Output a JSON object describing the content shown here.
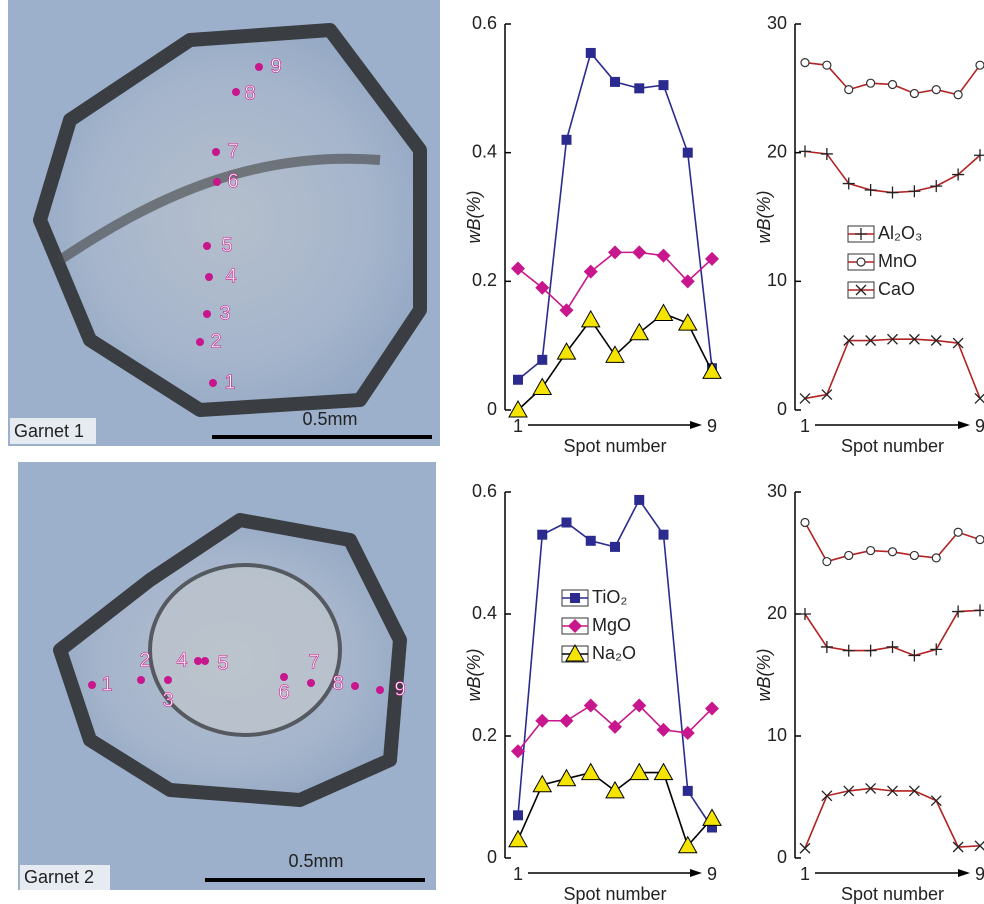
{
  "photos": [
    {
      "label": "Garnet 1",
      "scale": "0.5mm",
      "spots": [
        "1",
        "2",
        "3",
        "4",
        "5",
        "6",
        "7",
        "8",
        "9"
      ]
    },
    {
      "label": "Garnet 2",
      "scale": "0.5mm",
      "spots": [
        "1",
        "2",
        "3",
        "4",
        "5",
        "6",
        "7",
        "8",
        "9"
      ]
    }
  ],
  "chart_data": [
    {
      "type": "line",
      "ylabel": "wB(%)",
      "xlabel": "Spot number",
      "x": [
        1,
        2,
        3,
        4,
        5,
        6,
        7,
        8,
        9
      ],
      "xlim": [
        1,
        9
      ],
      "xticks": [
        1,
        9
      ],
      "ylim": [
        0,
        0.6
      ],
      "yticks": [
        0,
        0.2,
        0.4,
        0.6
      ],
      "legend": false,
      "series": [
        {
          "color": "#2b2b8f",
          "marker": "square",
          "values": [
            0.047,
            0.078,
            0.42,
            0.555,
            0.51,
            0.5,
            0.505,
            0.4,
            0.065
          ]
        },
        {
          "color": "#c8168c",
          "line_color": "#c8168c",
          "marker": "diamond",
          "values": [
            0.22,
            0.19,
            0.155,
            0.215,
            0.245,
            0.245,
            0.24,
            0.2,
            0.235
          ]
        },
        {
          "color": "#f5e400",
          "line_color": "#000000",
          "marker": "triangle",
          "values": [
            0,
            0.035,
            0.09,
            0.14,
            0.085,
            0.12,
            0.15,
            0.135,
            0.06
          ]
        }
      ]
    },
    {
      "type": "line",
      "ylabel": "wB(%)",
      "xlabel": "Spot number",
      "x": [
        1,
        2,
        3,
        4,
        5,
        6,
        7,
        8,
        9
      ],
      "xlim": [
        1,
        9
      ],
      "xticks": [
        1,
        9
      ],
      "ylim": [
        0,
        30
      ],
      "yticks": [
        0,
        10,
        20,
        30
      ],
      "legend": true,
      "series": [
        {
          "name": "Al₂O₃",
          "color": "#b22222",
          "marker": "plus",
          "values": [
            20.1,
            19.9,
            17.6,
            17.1,
            16.9,
            17.0,
            17.4,
            18.3,
            19.8
          ]
        },
        {
          "name": "MnO",
          "color": "#b22222",
          "marker": "circle",
          "values": [
            27.0,
            26.8,
            24.9,
            25.4,
            25.3,
            24.6,
            24.9,
            24.5,
            26.8
          ]
        },
        {
          "name": "CaO",
          "color": "#b22222",
          "marker": "cross",
          "values": [
            0.9,
            1.2,
            5.4,
            5.4,
            5.5,
            5.5,
            5.4,
            5.2,
            0.9
          ]
        }
      ]
    },
    {
      "type": "line",
      "ylabel": "wB(%)",
      "xlabel": "Spot number",
      "x": [
        1,
        2,
        3,
        4,
        5,
        6,
        7,
        8,
        9
      ],
      "xlim": [
        1,
        9
      ],
      "xticks": [
        1,
        9
      ],
      "ylim": [
        0,
        0.6
      ],
      "yticks": [
        0,
        0.2,
        0.4,
        0.6
      ],
      "legend": true,
      "series": [
        {
          "name": "TiO₂",
          "color": "#2b2b8f",
          "marker": "square",
          "values": [
            0.07,
            0.53,
            0.55,
            0.52,
            0.51,
            0.587,
            0.53,
            0.11,
            0.05
          ]
        },
        {
          "name": "MgO",
          "color": "#c8168c",
          "line_color": "#c8168c",
          "marker": "diamond",
          "values": [
            0.175,
            0.225,
            0.225,
            0.25,
            0.215,
            0.25,
            0.21,
            0.205,
            0.245
          ]
        },
        {
          "name": "Na₂O",
          "color": "#f5e400",
          "line_color": "#000000",
          "marker": "triangle",
          "values": [
            0.03,
            0.12,
            0.13,
            0.14,
            0.11,
            0.14,
            0.14,
            0.02,
            0.065
          ]
        }
      ]
    },
    {
      "type": "line",
      "ylabel": "wB(%)",
      "xlabel": "Spot number",
      "x": [
        1,
        2,
        3,
        4,
        5,
        6,
        7,
        8,
        9
      ],
      "xlim": [
        1,
        9
      ],
      "xticks": [
        1,
        9
      ],
      "ylim": [
        0,
        30
      ],
      "yticks": [
        0,
        10,
        20,
        30
      ],
      "legend": false,
      "series": [
        {
          "color": "#b22222",
          "marker": "plus",
          "values": [
            20.0,
            17.3,
            17.0,
            17.0,
            17.3,
            16.6,
            17.1,
            20.2,
            20.3
          ]
        },
        {
          "color": "#b22222",
          "marker": "circle",
          "values": [
            27.5,
            24.3,
            24.8,
            25.2,
            25.1,
            24.8,
            24.6,
            26.7,
            26.1
          ]
        },
        {
          "color": "#b22222",
          "marker": "cross",
          "values": [
            0.8,
            5.1,
            5.5,
            5.7,
            5.5,
            5.5,
            4.7,
            0.9,
            1.0
          ]
        }
      ]
    }
  ]
}
